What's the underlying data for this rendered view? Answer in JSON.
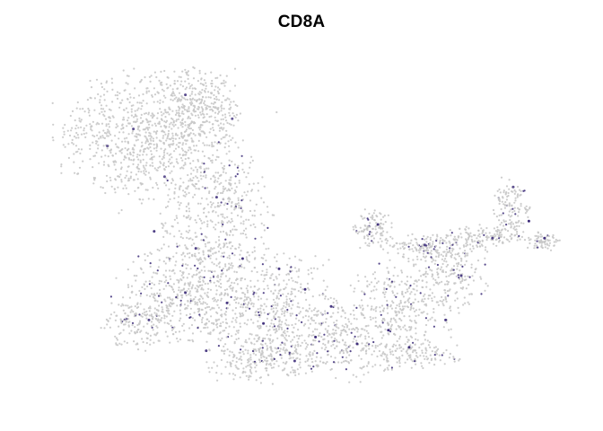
{
  "chart_data": {
    "type": "scatter",
    "title": "CD8A",
    "xlabel": "",
    "ylabel": "",
    "axes_visible": false,
    "grid": false,
    "legend": "none",
    "point_colors": {
      "low": "#c8c8c8",
      "high": "#3b2a78"
    },
    "series": [
      {
        "values": [
          {
            "x": 0.12,
            "y": 0.73,
            "v": 0.5
          },
          {
            "x": 0.17,
            "y": 0.78,
            "v": 0.6
          },
          {
            "x": 0.27,
            "y": 0.88,
            "v": 0.7
          },
          {
            "x": 0.36,
            "y": 0.81,
            "v": 0.55
          },
          {
            "x": 0.23,
            "y": 0.64,
            "v": 0.6
          },
          {
            "x": 0.33,
            "y": 0.58,
            "v": 0.7
          },
          {
            "x": 0.21,
            "y": 0.48,
            "v": 0.8
          },
          {
            "x": 0.29,
            "y": 0.43,
            "v": 0.75
          },
          {
            "x": 0.38,
            "y": 0.4,
            "v": 0.9
          },
          {
            "x": 0.45,
            "y": 0.37,
            "v": 0.85
          },
          {
            "x": 0.5,
            "y": 0.31,
            "v": 0.95
          },
          {
            "x": 0.27,
            "y": 0.3,
            "v": 0.8
          },
          {
            "x": 0.35,
            "y": 0.27,
            "v": 0.85
          },
          {
            "x": 0.42,
            "y": 0.21,
            "v": 0.9
          },
          {
            "x": 0.52,
            "y": 0.17,
            "v": 1.0
          },
          {
            "x": 0.6,
            "y": 0.15,
            "v": 0.95
          },
          {
            "x": 0.66,
            "y": 0.19,
            "v": 1.0
          },
          {
            "x": 0.7,
            "y": 0.14,
            "v": 0.9
          },
          {
            "x": 0.77,
            "y": 0.22,
            "v": 0.85
          },
          {
            "x": 0.64,
            "y": 0.5,
            "v": 0.9
          },
          {
            "x": 0.73,
            "y": 0.44,
            "v": 0.7
          },
          {
            "x": 0.8,
            "y": 0.35,
            "v": 0.8
          },
          {
            "x": 0.86,
            "y": 0.46,
            "v": 0.75
          },
          {
            "x": 0.9,
            "y": 0.61,
            "v": 0.6
          },
          {
            "x": 0.93,
            "y": 0.51,
            "v": 1.0
          },
          {
            "x": 0.96,
            "y": 0.46,
            "v": 0.95
          },
          {
            "x": 0.55,
            "y": 0.26,
            "v": 0.85
          },
          {
            "x": 0.48,
            "y": 0.1,
            "v": 0.75
          },
          {
            "x": 0.2,
            "y": 0.22,
            "v": 0.7
          },
          {
            "x": 0.31,
            "y": 0.13,
            "v": 0.8
          }
        ]
      }
    ]
  }
}
